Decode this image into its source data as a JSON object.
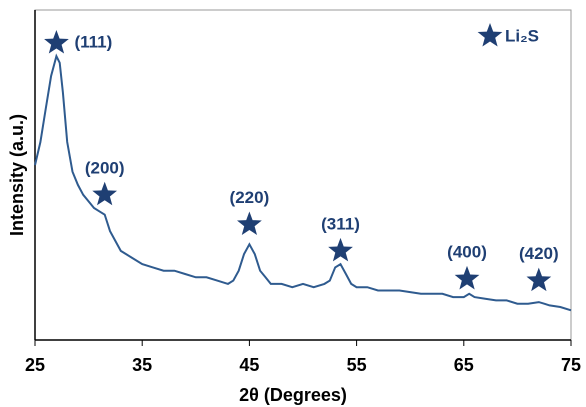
{
  "chart_data": {
    "type": "line",
    "xlabel": "2θ (Degrees)",
    "ylabel": "Intensity (a.u.)",
    "xlim": [
      25,
      75
    ],
    "xticks": [
      25,
      35,
      45,
      55,
      65,
      75
    ],
    "ylim": [
      0,
      100
    ],
    "legend": {
      "name": "Li₂S",
      "corner": "top-right"
    },
    "series": [
      {
        "name": "Li₂S",
        "color": "#2f5b8f",
        "x": [
          25,
          25.5,
          26,
          26.5,
          27,
          27.3,
          27.6,
          28,
          28.5,
          29,
          29.5,
          30,
          30.5,
          31,
          31.5,
          32,
          32.5,
          33,
          34,
          35,
          36,
          37,
          38,
          39,
          40,
          41,
          42,
          43,
          43.5,
          44,
          44.5,
          45,
          45.5,
          46,
          46.5,
          47,
          48,
          49,
          50,
          51,
          52,
          52.5,
          53,
          53.5,
          54,
          54.5,
          55,
          56,
          57,
          58,
          59,
          60,
          61,
          62,
          63,
          64,
          65,
          65.5,
          66,
          67,
          68,
          69,
          70,
          71,
          72,
          72.5,
          73,
          74,
          75
        ],
        "values": [
          53,
          60,
          70,
          80,
          86,
          84,
          75,
          60,
          51,
          47,
          44,
          42,
          40,
          39,
          38,
          33,
          30,
          27,
          25,
          23,
          22,
          21,
          21,
          20,
          19,
          19,
          18,
          17,
          18,
          21,
          26,
          29,
          26,
          21,
          19,
          17,
          17,
          16,
          17,
          16,
          17,
          18,
          22,
          23,
          20,
          17,
          16,
          16,
          15,
          15,
          15,
          14.5,
          14,
          14,
          14,
          13,
          13,
          14,
          13,
          12.5,
          12,
          12,
          11,
          11,
          11.5,
          11,
          10.5,
          10,
          9
        ]
      }
    ],
    "marker_color": "#1f3f73",
    "annotations": [
      {
        "label": "(111)",
        "x": 27,
        "y": 90
      },
      {
        "label": "(200)",
        "x": 31.5,
        "y": 44
      },
      {
        "label": "(220)",
        "x": 45,
        "y": 35
      },
      {
        "label": "(311)",
        "x": 53.5,
        "y": 27
      },
      {
        "label": "(400)",
        "x": 65.3,
        "y": 18.5
      },
      {
        "label": "(420)",
        "x": 72,
        "y": 18
      }
    ]
  }
}
